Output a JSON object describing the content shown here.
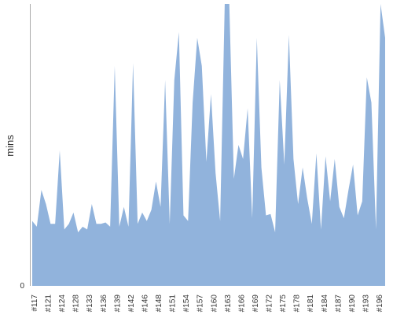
{
  "chart_data": {
    "type": "area",
    "ylabel": "mins",
    "y_tick_labels": [
      "0"
    ],
    "ylim": [
      0,
      100
    ],
    "x_tick_labels": [
      "#117",
      "#121",
      "#124",
      "#128",
      "#133",
      "#136",
      "#139",
      "#142",
      "#146",
      "#148",
      "#151",
      "#154",
      "#157",
      "#160",
      "#163",
      "#166",
      "#169",
      "#172",
      "#175",
      "#178",
      "#181",
      "#184",
      "#187",
      "#190",
      "#193",
      "#196"
    ],
    "series": [
      {
        "values": [
          23,
          21,
          34,
          29,
          22,
          22,
          48,
          20,
          22,
          26,
          19,
          21,
          20,
          29,
          22,
          22,
          22.5,
          21,
          78,
          21,
          28,
          21,
          79,
          22,
          26,
          23,
          27,
          37,
          28,
          73,
          22,
          73,
          90,
          25,
          23,
          65,
          88,
          78,
          44,
          68,
          40,
          23,
          100,
          100,
          38,
          50,
          45,
          63,
          24,
          88,
          42,
          25,
          25.5,
          19,
          73,
          43,
          89,
          45,
          29,
          42,
          31,
          22,
          47,
          20,
          46,
          30,
          45,
          28,
          24,
          34,
          43,
          25,
          30,
          74,
          65,
          20,
          100,
          88
        ]
      }
    ],
    "area_color": "#91b3dc",
    "grid": false
  }
}
